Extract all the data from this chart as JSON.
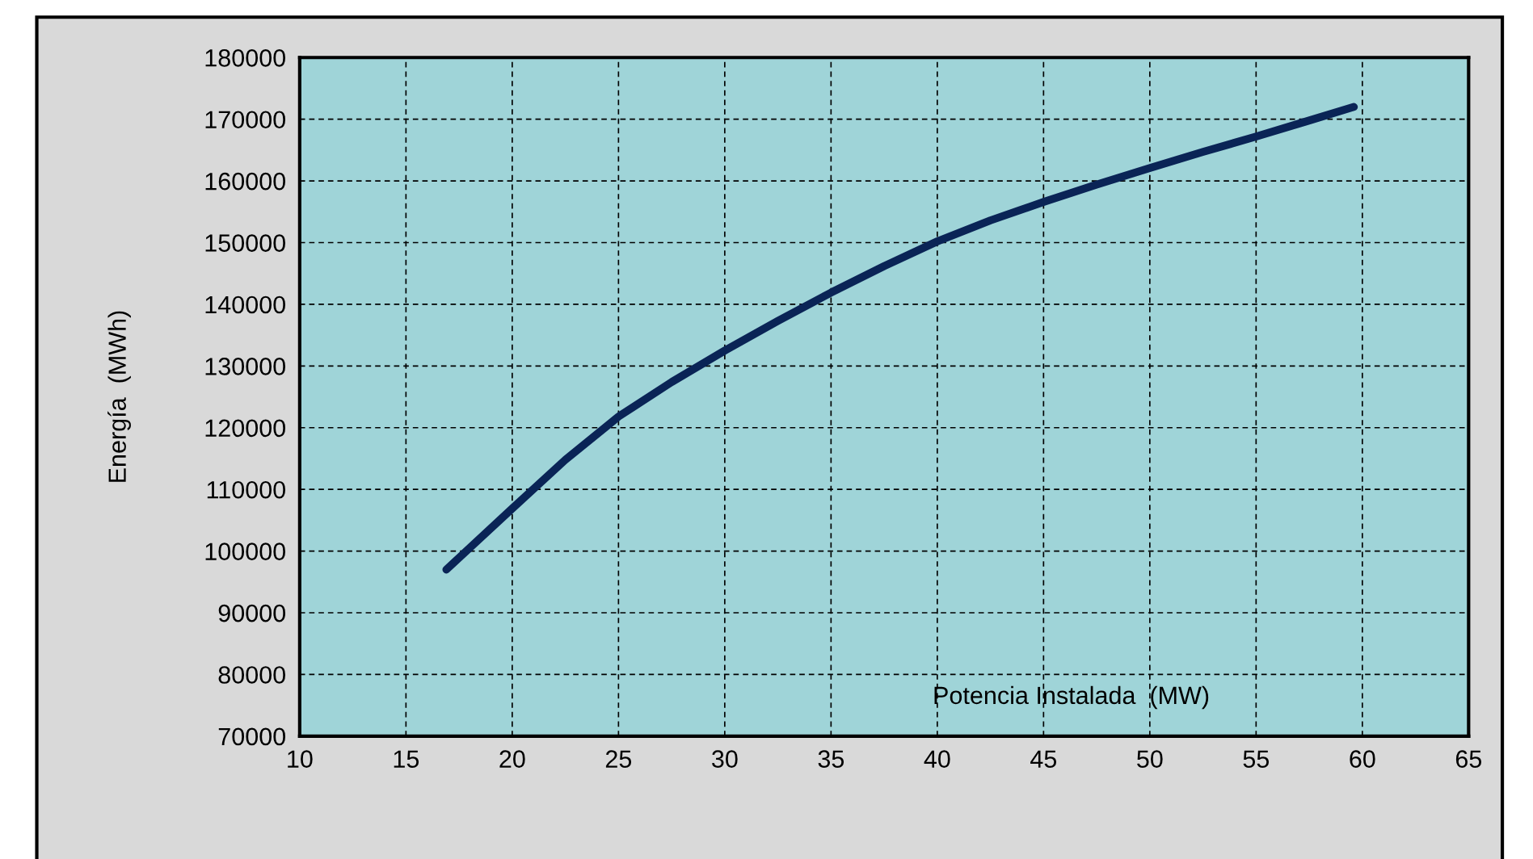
{
  "chart_data": {
    "type": "line",
    "xlabel": "Potencia Instalada  (MW)",
    "ylabel": "Energía  (MWh)",
    "series": [
      {
        "color": "#0a2456",
        "x": [
          16.9,
          20,
          22.5,
          25,
          27.5,
          30,
          32.5,
          35,
          37.5,
          40,
          42.5,
          45,
          47.5,
          50,
          52.5,
          55,
          57.5,
          59.6
        ],
        "values": [
          97000,
          106900,
          114800,
          121800,
          127400,
          132500,
          137300,
          141900,
          146200,
          150200,
          153600,
          156600,
          159400,
          162100,
          164700,
          167200,
          169800,
          172000
        ]
      }
    ],
    "xlim": [
      10,
      65
    ],
    "xticks": [
      10,
      15,
      20,
      25,
      30,
      35,
      40,
      45,
      50,
      55,
      60,
      65
    ],
    "ylim": [
      70000,
      180000
    ],
    "yticks": [
      70000,
      80000,
      90000,
      100000,
      110000,
      120000,
      130000,
      140000,
      150000,
      160000,
      170000,
      180000
    ],
    "grid": true,
    "marker": "none",
    "line_style": "solid",
    "legend": false
  }
}
